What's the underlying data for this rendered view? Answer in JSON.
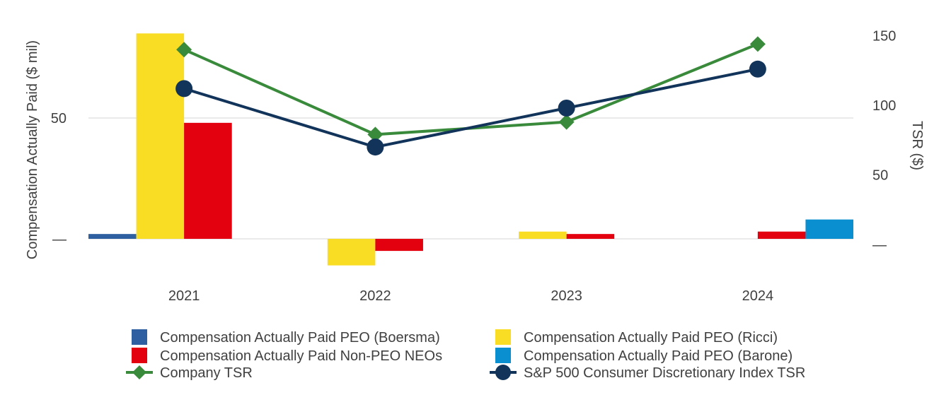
{
  "chart_data": {
    "type": "bar",
    "categories": [
      "2021",
      "2022",
      "2023",
      "2024"
    ],
    "ylabel_left": "Compensation Actually Paid ($ mil)",
    "ylabel_right": "TSR ($)",
    "ylim_left": [
      -20,
      85
    ],
    "ylim_right": [
      0,
      165
    ],
    "left_ticks": [
      {
        "value": 50,
        "label": "50"
      },
      {
        "value": 0,
        "label": "—"
      }
    ],
    "right_ticks": [
      {
        "value": 150,
        "label": "150"
      },
      {
        "value": 100,
        "label": "100"
      },
      {
        "value": 50,
        "label": "50"
      },
      {
        "value": 0,
        "label": "—"
      }
    ],
    "bar_series": [
      {
        "name": "Compensation Actually Paid PEO (Boersma)",
        "color": "#2E5FA0",
        "values": [
          2,
          0,
          0,
          0
        ]
      },
      {
        "name": "Compensation Actually Paid PEO (Ricci)",
        "color": "#F9DD25",
        "values": [
          85,
          -11,
          3,
          0
        ]
      },
      {
        "name": "Compensation Actually Paid Non-PEO NEOs",
        "color": "#E3000F",
        "values": [
          48,
          -5,
          2,
          3
        ]
      },
      {
        "name": "Compensation Actually Paid PEO (Barone)",
        "color": "#0A8FD0",
        "values": [
          0,
          0,
          0,
          8
        ]
      }
    ],
    "line_series": [
      {
        "name": "Company TSR",
        "color": "#3A8A3C",
        "marker": "diamond",
        "values": [
          140,
          79,
          88,
          144
        ]
      },
      {
        "name": "S&P 500 Consumer Discretionary Index TSR",
        "color": "#12345A",
        "marker": "circle",
        "values": [
          112,
          70,
          98,
          126
        ]
      }
    ],
    "legend": [
      {
        "label": "Compensation Actually Paid PEO (Boersma)",
        "kind": "bar",
        "color": "#2E5FA0"
      },
      {
        "label": "Compensation Actually Paid PEO (Ricci)",
        "kind": "bar",
        "color": "#F9DD25"
      },
      {
        "label": "Compensation Actually Paid Non-PEO NEOs",
        "kind": "bar",
        "color": "#E3000F"
      },
      {
        "label": "Compensation Actually Paid PEO (Barone)",
        "kind": "bar",
        "color": "#0A8FD0"
      },
      {
        "label": "Company TSR",
        "kind": "line-diamond",
        "color": "#3A8A3C"
      },
      {
        "label": "S&P 500 Consumer Discretionary Index TSR",
        "kind": "line-circle",
        "color": "#12345A"
      }
    ],
    "gridline_color": "#E4E4E4"
  }
}
